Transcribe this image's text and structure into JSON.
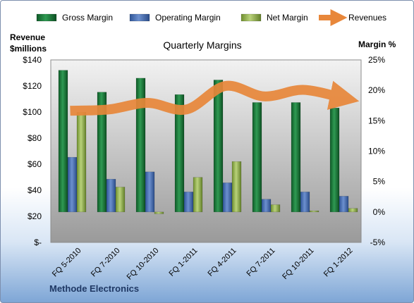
{
  "chart_data": {
    "type": "bar",
    "title": "Quarterly Margins",
    "ylabel_left": [
      "Revenue",
      "$millions"
    ],
    "ylabel_right": "Margin %",
    "categories": [
      "FQ 5-2010",
      "FQ 7-2010",
      "FQ 10-2010",
      "FQ 1-2011",
      "FQ 4-2011",
      "FQ 7-2011",
      "FQ 10-2011",
      "FQ 1-2012"
    ],
    "left_axis": {
      "min": 0,
      "max": 140,
      "step": 20,
      "ticks": [
        "$-",
        "$20",
        "$40",
        "$60",
        "$80",
        "$100",
        "$120",
        "$140"
      ]
    },
    "right_axis": {
      "min": -5,
      "max": 25,
      "step": 5,
      "ticks": [
        "-5%",
        "0%",
        "5%",
        "10%",
        "15%",
        "20%",
        "25%"
      ]
    },
    "series": [
      {
        "name": "Gross Margin",
        "type": "bar",
        "axis": "right",
        "color": "#1e7b3c",
        "values": [
          23.3,
          19.7,
          22.0,
          19.3,
          21.7,
          18.0,
          18.0,
          17.1
        ]
      },
      {
        "name": "Operating Margin",
        "type": "bar",
        "axis": "right",
        "color": "#4a72b8",
        "values": [
          9.0,
          5.4,
          6.6,
          3.3,
          4.8,
          2.1,
          3.3,
          2.6
        ]
      },
      {
        "name": "Net Margin",
        "type": "bar",
        "axis": "right",
        "color": "#9bbb59",
        "values": [
          16.4,
          4.1,
          -0.3,
          5.7,
          8.3,
          1.2,
          0.2,
          0.6
        ]
      },
      {
        "name": "Revenues",
        "type": "line",
        "axis": "left",
        "color": "#e8873a",
        "values": [
          101,
          102,
          107,
          102,
          120,
          112,
          117,
          111
        ]
      }
    ],
    "grid": false,
    "legend_position": "top"
  },
  "footer": {
    "company": "Methode Electronics"
  }
}
